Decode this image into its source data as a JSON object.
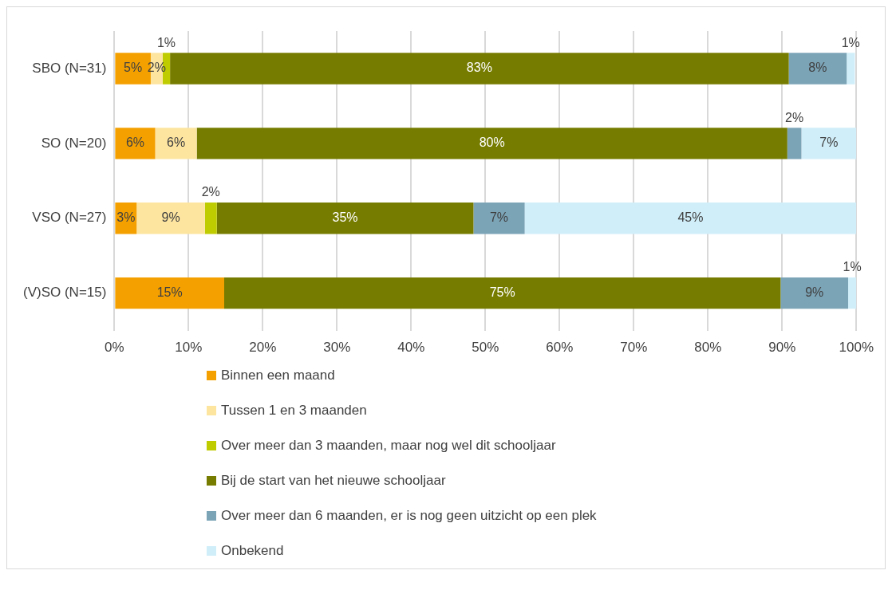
{
  "chart_data": {
    "type": "bar",
    "orientation": "horizontal",
    "stacked": true,
    "categories": [
      "SBO (N=31)",
      "SO (N=20)",
      "VSO (N=27)",
      "(V)SO (N=15)"
    ],
    "series": [
      {
        "name": "Binnen een maand",
        "color": "#f4a000",
        "values": [
          4.9,
          5.5,
          3.0,
          14.8
        ],
        "value_labels": [
          "5%",
          "6%",
          "3%",
          "15%"
        ]
      },
      {
        "name": "Tussen 1 en 3 maanden",
        "color": "#fde5a0",
        "values": [
          1.6,
          5.6,
          9.2,
          0
        ],
        "value_labels": [
          "2%",
          "6%",
          "9%",
          null
        ]
      },
      {
        "name": "Over meer dan 3 maanden, maar nog wel dit schooljaar",
        "color": "#bfcc00",
        "values": [
          1.0,
          0,
          1.6,
          0
        ],
        "value_labels": [
          "1%",
          null,
          "2%",
          null
        ]
      },
      {
        "name": "Bij de start van het nieuwe schooljaar",
        "color": "#767c00",
        "values": [
          83.4,
          79.6,
          34.6,
          75.0
        ],
        "value_labels": [
          "83%",
          "80%",
          "35%",
          "75%"
        ]
      },
      {
        "name": "Over meer dan 6 maanden, er is nog geen uitzicht op een plek",
        "color": "#7ba4b7",
        "values": [
          7.8,
          1.9,
          6.9,
          9.1
        ],
        "value_labels": [
          "8%",
          "2%",
          "7%",
          "9%"
        ]
      },
      {
        "name": "Onbekend",
        "color": "#d0eef9",
        "values": [
          1.1,
          7.4,
          44.7,
          1.1
        ],
        "value_labels": [
          "1%",
          "7%",
          "45%",
          "1%"
        ]
      }
    ],
    "xlim": [
      0,
      100
    ],
    "xticks": [
      {
        "value": 0,
        "label": "0%"
      },
      {
        "value": 10,
        "label": "10%"
      },
      {
        "value": 20,
        "label": "20%"
      },
      {
        "value": 30,
        "label": "30%"
      },
      {
        "value": 40,
        "label": "40%"
      },
      {
        "value": 50,
        "label": "50%"
      },
      {
        "value": 60,
        "label": "60%"
      },
      {
        "value": 70,
        "label": "70%"
      },
      {
        "value": 80,
        "label": "80%"
      },
      {
        "value": 90,
        "label": "90%"
      },
      {
        "value": 100,
        "label": "100%"
      }
    ],
    "grid": "x",
    "legend": "bottom"
  }
}
